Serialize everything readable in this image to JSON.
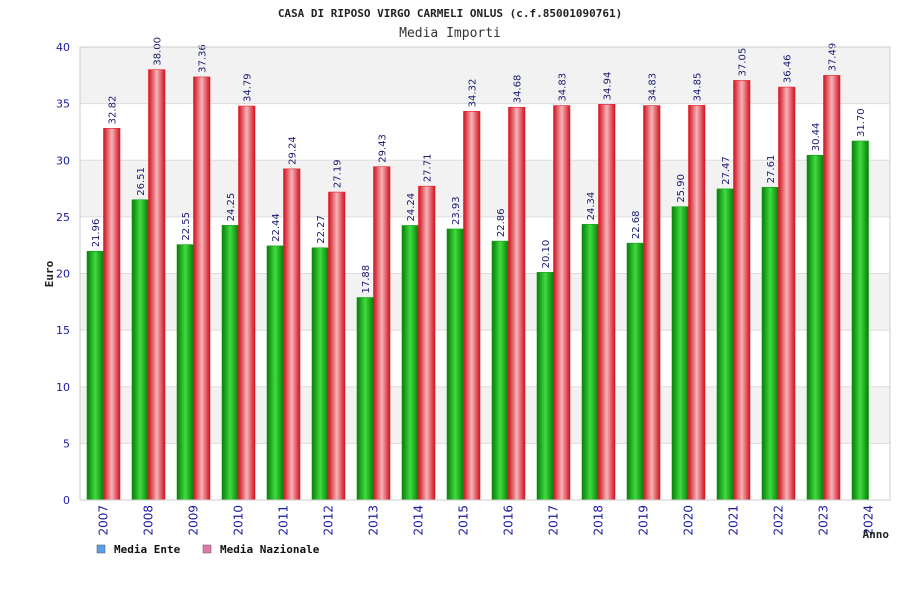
{
  "chart_data": {
    "type": "bar",
    "title": "CASA DI RIPOSO VIRGO CARMELI ONLUS (c.f.85001090761)",
    "subtitle": "Media Importi",
    "xlabel": "Anno",
    "ylabel": "Euro",
    "ylim": [
      0,
      40
    ],
    "yticks": [
      0,
      5,
      10,
      15,
      20,
      25,
      30,
      35,
      40
    ],
    "grid": true,
    "legend_position": "bottom-left",
    "categories": [
      "2007",
      "2008",
      "2009",
      "2010",
      "2011",
      "2012",
      "2013",
      "2014",
      "2015",
      "2016",
      "2017",
      "2018",
      "2019",
      "2020",
      "2021",
      "2022",
      "2023",
      "2024"
    ],
    "series": [
      {
        "name": "Media Ente",
        "color": "#12a012",
        "values": [
          21.96,
          26.51,
          22.55,
          24.25,
          22.44,
          22.27,
          17.88,
          24.24,
          23.93,
          22.86,
          20.1,
          24.34,
          22.68,
          25.9,
          27.47,
          27.61,
          30.44,
          31.7
        ],
        "labels": [
          "21.96",
          "26.51",
          "22.55",
          "24.25",
          "22.44",
          "22.27",
          "17.88",
          "24.24",
          "23.93",
          "22.86",
          "20.10",
          "24.34",
          "22.68",
          "25.90",
          "27.47",
          "27.61",
          "30.44",
          "31.70"
        ]
      },
      {
        "name": "Media Nazionale",
        "color": "#e8202a",
        "values": [
          32.82,
          38.0,
          37.36,
          34.79,
          29.24,
          27.19,
          29.43,
          27.71,
          34.32,
          34.68,
          34.83,
          34.94,
          34.83,
          34.85,
          37.05,
          36.46,
          37.49,
          null
        ],
        "labels": [
          "32.82",
          "38.00",
          "37.36",
          "34.79",
          "29.24",
          "27.19",
          "29.43",
          "27.71",
          "34.32",
          "34.68",
          "34.83",
          "34.94",
          "34.83",
          "34.85",
          "37.05",
          "36.46",
          "37.49",
          null
        ]
      }
    ],
    "legend_swatch_colors": [
      "#5b9ee8",
      "#e07aaa"
    ]
  }
}
